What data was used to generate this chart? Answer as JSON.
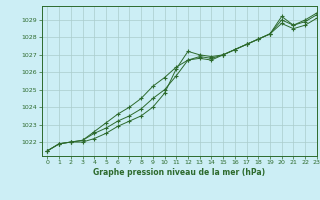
{
  "title": "Graphe pression niveau de la mer (hPa)",
  "bg_color": "#cceef5",
  "grid_color": "#aacccc",
  "line_color": "#2d6a2d",
  "xlim": [
    -0.5,
    23
  ],
  "ylim": [
    1021.2,
    1029.8
  ],
  "yticks": [
    1022,
    1023,
    1024,
    1025,
    1026,
    1027,
    1028,
    1029
  ],
  "xticks": [
    0,
    1,
    2,
    3,
    4,
    5,
    6,
    7,
    8,
    9,
    10,
    11,
    12,
    13,
    14,
    15,
    16,
    17,
    18,
    19,
    20,
    21,
    22,
    23
  ],
  "series1": [
    1021.5,
    1021.9,
    1022.0,
    1022.0,
    1022.2,
    1022.5,
    1022.9,
    1023.2,
    1023.5,
    1024.0,
    1024.8,
    1026.2,
    1027.2,
    1027.0,
    1026.9,
    1027.0,
    1027.3,
    1027.6,
    1027.9,
    1028.2,
    1029.2,
    1028.7,
    1029.0,
    1029.4
  ],
  "series2": [
    1021.5,
    1021.9,
    1022.0,
    1022.1,
    1022.5,
    1022.8,
    1023.2,
    1023.5,
    1023.9,
    1024.5,
    1025.0,
    1025.8,
    1026.7,
    1026.9,
    1026.8,
    1027.0,
    1027.3,
    1027.6,
    1027.9,
    1028.2,
    1029.0,
    1028.7,
    1028.9,
    1029.3
  ],
  "series3": [
    1021.5,
    1021.9,
    1022.0,
    1022.1,
    1022.6,
    1023.1,
    1023.6,
    1024.0,
    1024.5,
    1025.2,
    1025.7,
    1026.3,
    1026.7,
    1026.8,
    1026.7,
    1027.0,
    1027.3,
    1027.6,
    1027.9,
    1028.2,
    1028.8,
    1028.5,
    1028.7,
    1029.1
  ],
  "figsize": [
    3.2,
    2.0
  ],
  "dpi": 100
}
